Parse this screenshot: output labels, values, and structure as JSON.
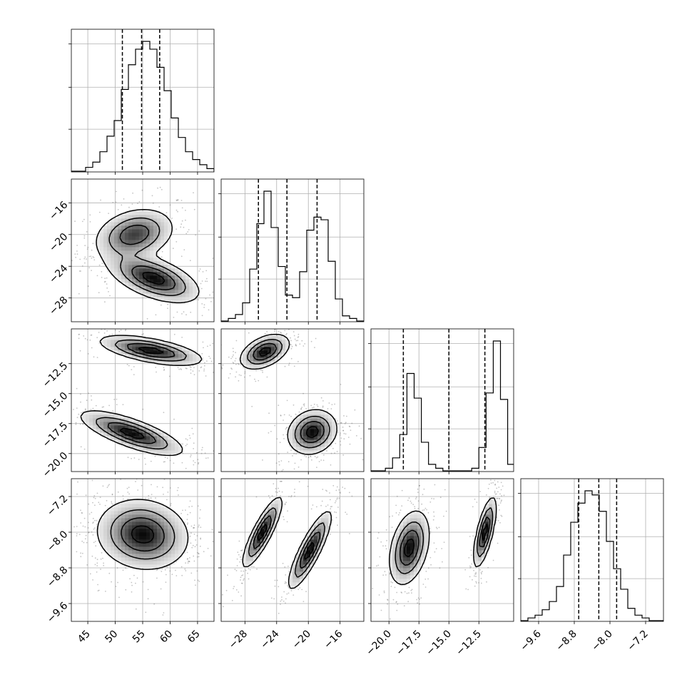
{
  "chart_data": {
    "type": "corner",
    "variables": [
      {
        "range": [
          42,
          68
        ],
        "ticks": [
          45,
          50,
          55,
          60,
          65
        ],
        "tick_labels": [
          "45",
          "50",
          "55",
          "60",
          "65"
        ],
        "quantiles": [
          51.3,
          54.8,
          58.1
        ]
      },
      {
        "range": [
          -31,
          -13
        ],
        "ticks": [
          -28,
          -24,
          -20,
          -16
        ],
        "tick_labels": [
          "−28",
          "−24",
          "−20",
          "−16"
        ],
        "quantiles": [
          -26.3,
          -22.7,
          -18.9
        ]
      },
      {
        "range": [
          -21.5,
          -9.6
        ],
        "ticks": [
          -20.0,
          -17.5,
          -15.0,
          -12.5
        ],
        "tick_labels": [
          "−20.0",
          "−17.5",
          "−15.0",
          "−12.5"
        ],
        "quantiles": [
          -18.8,
          -15.0,
          -12.0
        ]
      },
      {
        "range": [
          -10.0,
          -6.8
        ],
        "ticks": [
          -9.6,
          -8.8,
          -8.0,
          -7.2
        ],
        "tick_labels": [
          "−9.6",
          "−8.8",
          "−8.0",
          "−7.2"
        ],
        "quantiles": [
          -8.7,
          -8.25,
          -7.85
        ]
      }
    ],
    "histograms": [
      {
        "bin_start": 42,
        "bin_width": 1.3,
        "counts": [
          0,
          0,
          3,
          7,
          15,
          27,
          39,
          63,
          82,
          94,
          100,
          94,
          80,
          62,
          41,
          26,
          15,
          9,
          5,
          2,
          0
        ]
      },
      {
        "bin_start": -31,
        "bin_width": 0.9,
        "counts": [
          0,
          2,
          5,
          14,
          40,
          75,
          100,
          72,
          42,
          20,
          18,
          38,
          70,
          80,
          78,
          46,
          17,
          4,
          2,
          0
        ]
      },
      {
        "bin_start": -21.5,
        "bin_width": 0.6,
        "counts": [
          0,
          0,
          2,
          10,
          28,
          75,
          56,
          22,
          5,
          2,
          0,
          0,
          0,
          0,
          2,
          18,
          60,
          100,
          55,
          5
        ]
      },
      {
        "bin_start": -10.0,
        "bin_width": 0.16,
        "counts": [
          0,
          2,
          4,
          8,
          14,
          25,
          48,
          72,
          86,
          95,
          92,
          80,
          58,
          38,
          23,
          9,
          4,
          2,
          0,
          0
        ]
      }
    ],
    "joint_modes": {
      "1,0": [
        {
          "mx": 53.5,
          "my": -20.0,
          "sx": 3.5,
          "sy": 1.6,
          "rho": 0.25,
          "weight": 0.45
        },
        {
          "mx": 57.0,
          "my": -25.5,
          "sx": 4.0,
          "sy": 1.5,
          "rho": -0.55,
          "weight": 0.55
        }
      ],
      "2,0": [
        {
          "mx": 56.5,
          "my": -11.4,
          "sx": 4.5,
          "sy": 0.6,
          "rho": -0.6,
          "weight": 0.5
        },
        {
          "mx": 53.0,
          "my": -18.3,
          "sx": 4.5,
          "sy": 0.9,
          "rho": -0.75,
          "weight": 0.5
        }
      ],
      "2,1": [
        {
          "mx": -25.5,
          "my": -11.5,
          "sx": 1.5,
          "sy": 0.7,
          "rho": 0.45,
          "weight": 0.5
        },
        {
          "mx": -19.5,
          "my": -18.2,
          "sx": 1.5,
          "sy": 0.9,
          "rho": 0.15,
          "weight": 0.5
        }
      ],
      "3,0": [
        {
          "mx": 55.0,
          "my": -8.05,
          "sx": 4.0,
          "sy": 0.38,
          "rho": -0.1,
          "weight": 1.0
        }
      ],
      "3,1": [
        {
          "mx": -25.8,
          "my": -8.0,
          "sx": 1.2,
          "sy": 0.38,
          "rho": 0.85,
          "weight": 0.5
        },
        {
          "mx": -19.8,
          "my": -8.4,
          "sx": 1.3,
          "sy": 0.42,
          "rho": 0.85,
          "weight": 0.5
        }
      ],
      "3,2": [
        {
          "mx": -18.3,
          "my": -8.35,
          "sx": 0.8,
          "sy": 0.4,
          "rho": 0.35,
          "weight": 0.5
        },
        {
          "mx": -12.0,
          "my": -8.0,
          "sx": 0.45,
          "sy": 0.38,
          "rho": 0.7,
          "weight": 0.5
        }
      ]
    },
    "contour_levels": [
      0.12,
      0.35,
      0.62,
      0.88
    ],
    "grid": true
  }
}
